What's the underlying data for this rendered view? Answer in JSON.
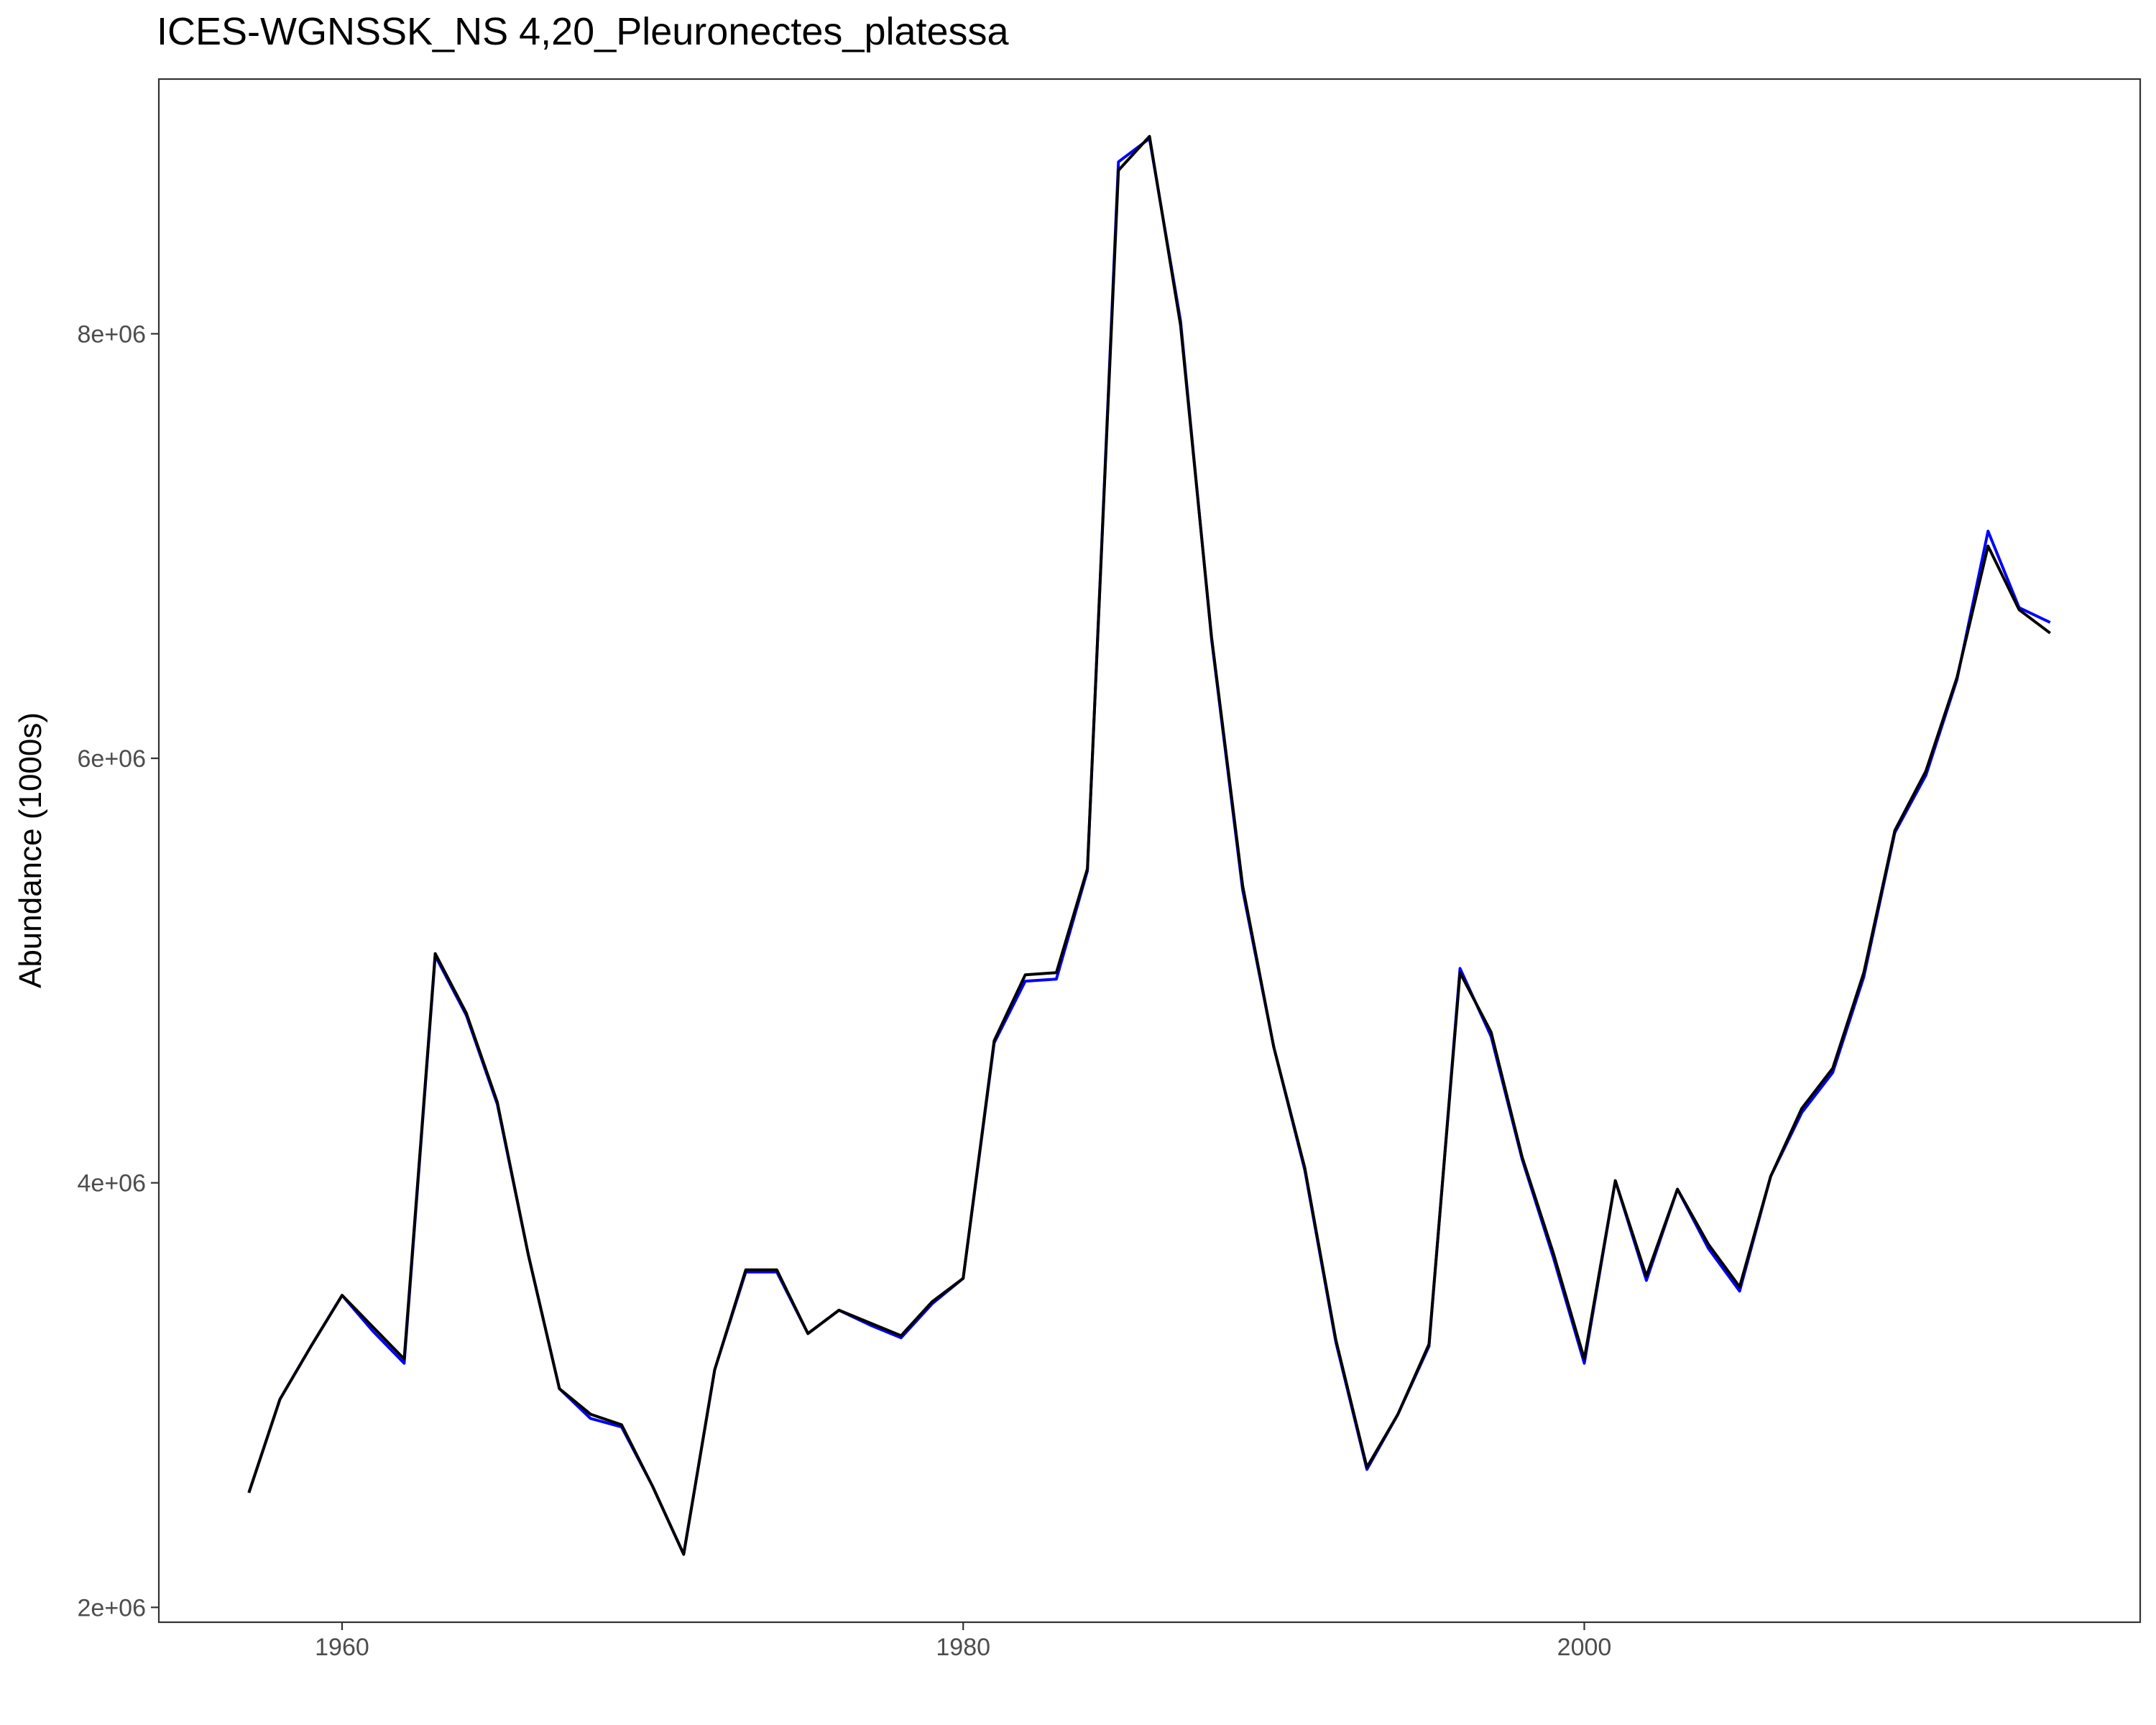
{
  "chart_data": {
    "type": "line",
    "title": "ICES-WGNSSK_NS 4,20_Pleuronectes_platessa",
    "xlabel": "",
    "ylabel": "Abundance (1000s)",
    "xlim": [
      1954.1,
      2017.9
    ],
    "ylim": [
      1930000,
      9200000
    ],
    "x_ticks": [
      1960,
      1980,
      2000
    ],
    "x_tick_labels": [
      "1960",
      "1980",
      "2000"
    ],
    "y_ticks": [
      2000000,
      4000000,
      6000000,
      8000000
    ],
    "y_tick_labels": [
      "2e+06",
      "4e+06",
      "6e+06",
      "8e+06"
    ],
    "grid": false,
    "legend": "none",
    "x": [
      1957,
      1958,
      1959,
      1960,
      1961,
      1962,
      1963,
      1964,
      1965,
      1966,
      1967,
      1968,
      1969,
      1970,
      1971,
      1972,
      1973,
      1974,
      1975,
      1976,
      1977,
      1978,
      1979,
      1980,
      1981,
      1982,
      1983,
      1984,
      1985,
      1986,
      1987,
      1988,
      1989,
      1990,
      1991,
      1992,
      1993,
      1994,
      1995,
      1996,
      1997,
      1998,
      1999,
      2000,
      2001,
      2002,
      2003,
      2004,
      2005,
      2006,
      2007,
      2008,
      2009,
      2010,
      2011,
      2012,
      2013,
      2014,
      2015
    ],
    "series": [
      {
        "color": "#0000ff",
        "values": [
          2540000,
          2980000,
          3230000,
          3470000,
          3300000,
          3150000,
          5070000,
          4790000,
          4370000,
          3660000,
          3030000,
          2890000,
          2850000,
          2570000,
          2250000,
          3120000,
          3580000,
          3580000,
          3290000,
          3400000,
          3330000,
          3270000,
          3430000,
          3550000,
          4660000,
          4950000,
          4960000,
          5470000,
          8810000,
          8920000,
          8060000,
          6560000,
          5380000,
          4640000,
          4060000,
          3250000,
          2650000,
          2910000,
          3230000,
          5010000,
          4690000,
          4110000,
          3650000,
          3150000,
          4010000,
          3540000,
          3970000,
          3690000,
          3490000,
          4030000,
          4330000,
          4520000,
          4970000,
          5650000,
          5920000,
          6370000,
          7070000,
          6710000,
          6640000
        ]
      },
      {
        "color": "#000000",
        "values": [
          2540000,
          2980000,
          3230000,
          3470000,
          3320000,
          3170000,
          5080000,
          4800000,
          4380000,
          3660000,
          3030000,
          2910000,
          2860000,
          2570000,
          2250000,
          3120000,
          3590000,
          3590000,
          3290000,
          3400000,
          3340000,
          3280000,
          3440000,
          3550000,
          4670000,
          4980000,
          4990000,
          5480000,
          8770000,
          8930000,
          8040000,
          6570000,
          5400000,
          4640000,
          4070000,
          3260000,
          2660000,
          2910000,
          3240000,
          4990000,
          4710000,
          4120000,
          3670000,
          3170000,
          4010000,
          3560000,
          3970000,
          3710000,
          3510000,
          4030000,
          4350000,
          4540000,
          4990000,
          5660000,
          5940000,
          6380000,
          7000000,
          6700000,
          6590000
        ]
      }
    ]
  }
}
